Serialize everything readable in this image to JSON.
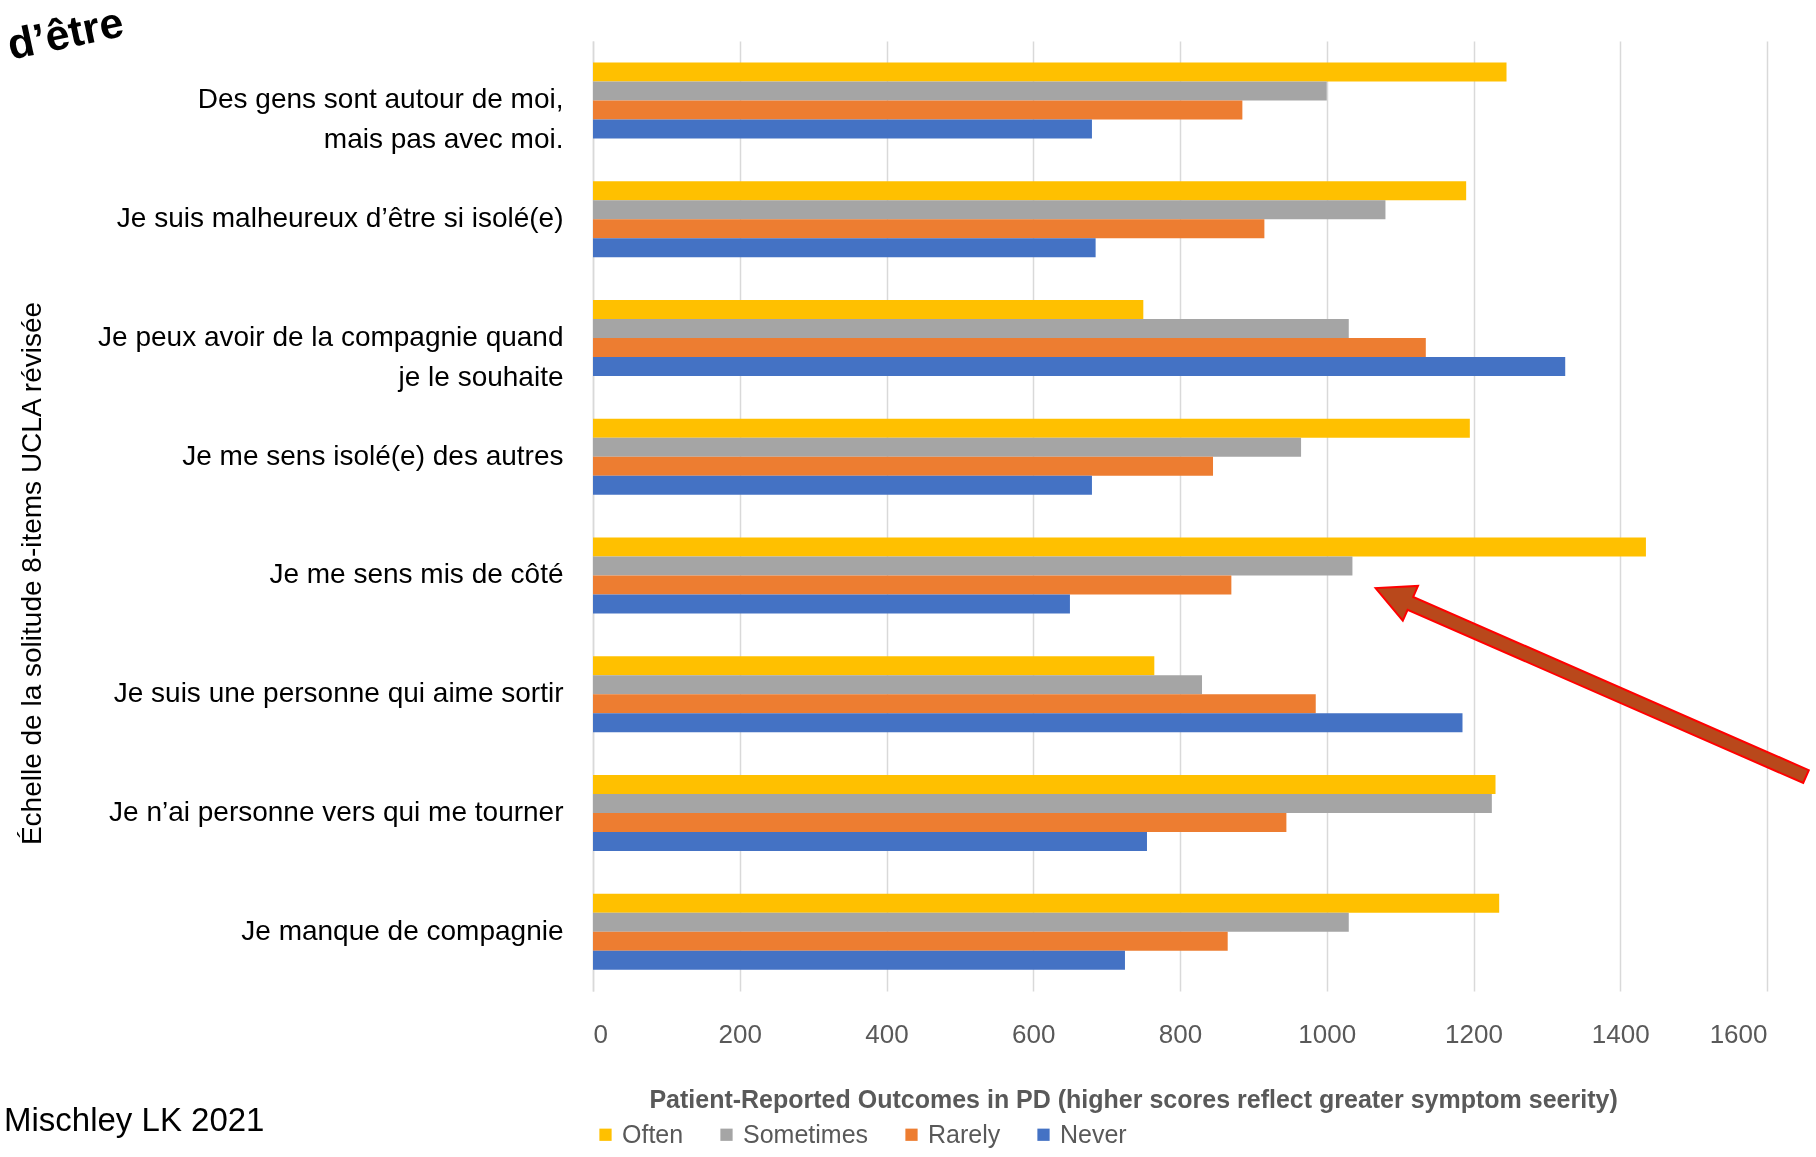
{
  "chart_data": {
    "type": "bar",
    "orientation": "horizontal",
    "title": "d’être",
    "xlabel": "Patient-Reported Outcomes in PD (higher scores reflect greater symptom seerity)",
    "ylabel": "Échelle de la solitude 8-items UCLA révisée",
    "annotations": [
      "Mischley LK 2021"
    ],
    "categories": [
      "Des gens sont autour de moi,\nmais pas avec moi.",
      "Je suis malheureux d’être si isolé(e)",
      "Je peux avoir de la compagnie quand\nje le souhaite",
      "Je me sens isolé(e) des autres",
      "Je me sens mis de côté",
      "Je suis une personne qui aime sortir",
      "Je n’ai personne vers qui me tourner",
      "Je manque de compagnie"
    ],
    "series": [
      {
        "name": "Often",
        "color": "#ffc000",
        "values": [
          1245,
          1190,
          750,
          1195,
          1435,
          765,
          1230,
          1235
        ]
      },
      {
        "name": "Sometimes",
        "color": "#a5a5a5",
        "values": [
          1000,
          1080,
          1030,
          965,
          1035,
          830,
          1225,
          1030
        ]
      },
      {
        "name": "Rarely",
        "color": "#ed7d31",
        "values": [
          885,
          915,
          1135,
          845,
          870,
          985,
          945,
          865
        ]
      },
      {
        "name": "Never",
        "color": "#4472c4",
        "values": [
          680,
          685,
          1325,
          680,
          650,
          1185,
          755,
          725
        ]
      }
    ],
    "xlim": [
      0,
      1600
    ],
    "xticks": [
      0,
      200,
      400,
      600,
      800,
      1000,
      1200,
      1400,
      1600
    ],
    "grid": "x",
    "legend": "bottom"
  }
}
